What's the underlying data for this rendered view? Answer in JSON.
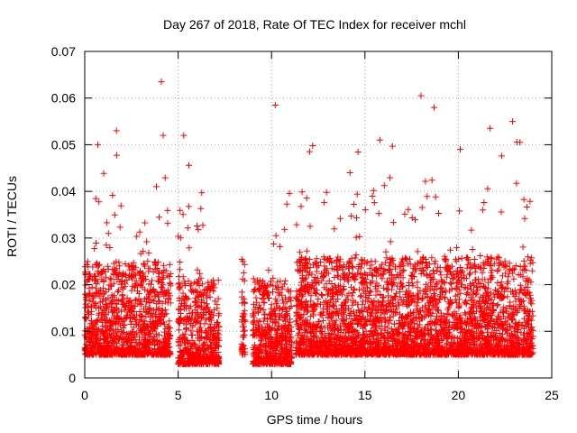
{
  "chart_data": {
    "type": "scatter",
    "title": "Day 267 of 2018, Rate Of TEC Index for receiver mchl",
    "xlabel": "GPS time / hours",
    "ylabel": "ROTI / TECUs",
    "xlim": [
      0,
      25
    ],
    "ylim": [
      0,
      0.07
    ],
    "xticks": [
      0,
      5,
      10,
      15,
      20,
      25
    ],
    "xtick_labels": [
      "0",
      "5",
      "10",
      "15",
      "20",
      "25"
    ],
    "yticks": [
      0,
      0.01,
      0.02,
      0.03,
      0.04,
      0.05,
      0.06,
      0.07
    ],
    "ytick_labels": [
      "0",
      "0.01",
      "0.02",
      "0.03",
      "0.04",
      "0.05",
      "0.06",
      "0.07"
    ],
    "grid": true,
    "marker": "plus",
    "color": "#ff0000",
    "data_segments": [
      {
        "start": 0.0,
        "end": 4.6,
        "base": 0.011,
        "spread": 0.014,
        "max": 0.053
      },
      {
        "start": 5.0,
        "end": 7.2,
        "base": 0.009,
        "spread": 0.012,
        "max": 0.052
      },
      {
        "start": 8.4,
        "end": 8.6,
        "base": 0.011,
        "spread": 0.012,
        "max": 0.033
      },
      {
        "start": 9.0,
        "end": 11.1,
        "base": 0.009,
        "spread": 0.012,
        "max": 0.043
      },
      {
        "start": 11.3,
        "end": 24.0,
        "base": 0.011,
        "spread": 0.015,
        "max": 0.055
      }
    ],
    "outliers": [
      {
        "x": 4.1,
        "y": 0.0635
      },
      {
        "x": 4.2,
        "y": 0.052
      },
      {
        "x": 10.2,
        "y": 0.0585
      },
      {
        "x": 12.2,
        "y": 0.0498
      },
      {
        "x": 14.2,
        "y": 0.044
      },
      {
        "x": 18.0,
        "y": 0.0605
      },
      {
        "x": 18.7,
        "y": 0.058
      },
      {
        "x": 20.1,
        "y": 0.049
      },
      {
        "x": 21.7,
        "y": 0.0535
      },
      {
        "x": 22.9,
        "y": 0.055
      },
      {
        "x": 1.7,
        "y": 0.053
      },
      {
        "x": 0.7,
        "y": 0.05
      },
      {
        "x": 5.3,
        "y": 0.052
      },
      {
        "x": 15.8,
        "y": 0.051
      }
    ]
  }
}
